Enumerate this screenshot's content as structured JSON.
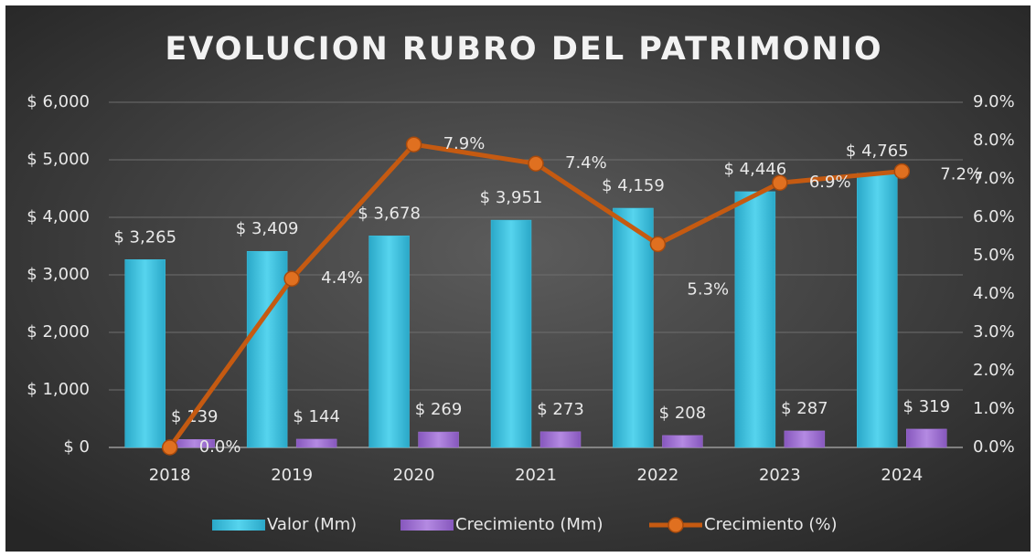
{
  "chart_data": {
    "type": "bar",
    "title": "EVOLUCION RUBRO DEL PATRIMONIO",
    "categories": [
      "2018",
      "2019",
      "2020",
      "2021",
      "2022",
      "2023",
      "2024"
    ],
    "series": [
      {
        "name": "Valor (Mm)",
        "type": "bar",
        "color": "#3ec3e2",
        "values": [
          3265,
          3409,
          3678,
          3951,
          4159,
          4446,
          4765
        ],
        "value_labels": [
          "$ 3,265",
          "$ 3,409",
          "$ 3,678",
          "$ 3,951",
          "$ 4,159",
          "$ 4,446",
          "$ 4,765"
        ]
      },
      {
        "name": "Crecimiento (Mm)",
        "type": "bar",
        "color": "#a274d6",
        "values": [
          139,
          144,
          269,
          273,
          208,
          287,
          319
        ],
        "value_labels": [
          "$ 139",
          "$ 144",
          "$ 269",
          "$ 273",
          "$ 208",
          "$ 287",
          "$ 319"
        ]
      },
      {
        "name": "Crecimiento (%)",
        "type": "line",
        "axis": "y2",
        "color": "#c55a11",
        "values": [
          0.0,
          4.4,
          7.9,
          7.4,
          5.3,
          6.9,
          7.2
        ],
        "value_labels": [
          "0.0%",
          "4.4%",
          "7.9%",
          "7.4%",
          "5.3%",
          "6.9%",
          "7.2%"
        ]
      }
    ],
    "ylim": [
      0,
      6000
    ],
    "yticks": [
      {
        "value": 0,
        "label": "$ 0"
      },
      {
        "value": 1000,
        "label": "$ 1,000"
      },
      {
        "value": 2000,
        "label": "$ 2,000"
      },
      {
        "value": 3000,
        "label": "$ 3,000"
      },
      {
        "value": 4000,
        "label": "$ 4,000"
      },
      {
        "value": 5000,
        "label": "$ 5,000"
      },
      {
        "value": 6000,
        "label": "$ 6,000"
      }
    ],
    "y2lim": [
      0,
      9
    ],
    "y2ticks": [
      {
        "value": 0,
        "label": "0.0%"
      },
      {
        "value": 1,
        "label": "1.0%"
      },
      {
        "value": 2,
        "label": "2.0%"
      },
      {
        "value": 3,
        "label": "3.0%"
      },
      {
        "value": 4,
        "label": "4.0%"
      },
      {
        "value": 5,
        "label": "5.0%"
      },
      {
        "value": 6,
        "label": "6.0%"
      },
      {
        "value": 7,
        "label": "7.0%"
      },
      {
        "value": 8,
        "label": "8.0%"
      },
      {
        "value": 9,
        "label": "9.0%"
      }
    ],
    "grid": true,
    "legend": "bottom"
  }
}
